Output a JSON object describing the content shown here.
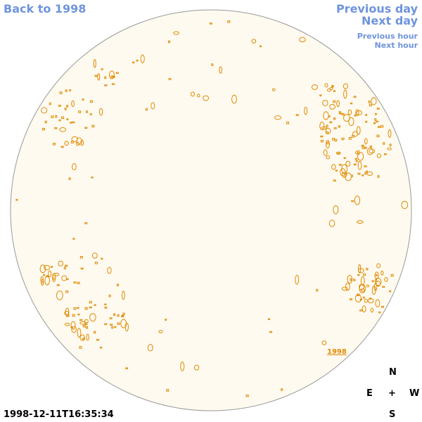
{
  "nav": {
    "back_label": "Back to 1998",
    "previous_day_label": "Previous day",
    "next_day_label": "Next day",
    "previous_hour_label": "Previous hour",
    "next_hour_label": "Next hour"
  },
  "sun": {
    "year_label": "1998",
    "timestamp": "1998-12-11T16:35:34"
  },
  "compass": {
    "north": "N",
    "east": "E",
    "center": "+",
    "west": "W",
    "south": "S"
  },
  "colors": {
    "disk_fill": "#fefaf0",
    "disk_stroke": "#999999",
    "contour": "#e08a00",
    "link": "#6f94dc"
  }
}
